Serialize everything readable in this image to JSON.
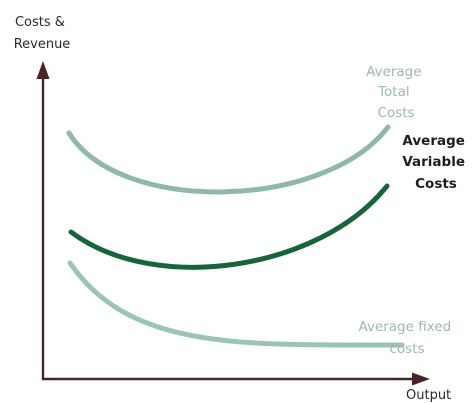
{
  "axes": {
    "y_label_lines": [
      "Costs &",
      "Revenue"
    ],
    "x_label": "Output"
  },
  "curves": [
    {
      "id": "average-total-costs",
      "label_lines": [
        "Average",
        "Total",
        "Costs"
      ],
      "color": "#8fb8a5",
      "emphasis": false
    },
    {
      "id": "average-variable-costs",
      "label_lines": [
        "Average",
        "Variable",
        "Costs"
      ],
      "color": "#17643a",
      "emphasis": true
    },
    {
      "id": "average-fixed-costs",
      "label_lines": [
        "Average fixed",
        "costs"
      ],
      "color": "#9cc4b2",
      "emphasis": false
    }
  ],
  "colors": {
    "axis": "#4a2326",
    "light_label": "#9fb8ac",
    "dark_label": "#1e1e1e"
  }
}
